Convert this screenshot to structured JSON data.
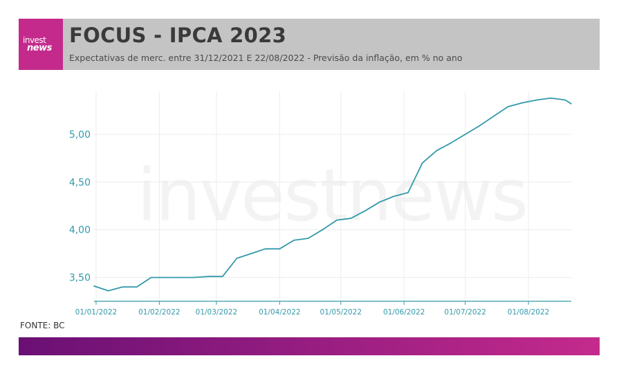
{
  "header": {
    "logo_top": "invest",
    "logo_bottom": "news",
    "title": "FOCUS - IPCA 2023",
    "subtitle": "Expectativas de merc. entre 31/12/2021 E 22/08/2022 - Previsão da inflação, em % no ano"
  },
  "watermark": "investnews",
  "source": "FONTE: BC",
  "colors": {
    "header_bg": "#c4c4c4",
    "brand_pink": "#c42a8c",
    "brand_purple": "#6a1075",
    "line": "#3399aa",
    "axis_text": "#3399aa"
  },
  "chart_data": {
    "type": "line",
    "title": "FOCUS - IPCA 2023",
    "xlabel": "",
    "ylabel": "",
    "x_range": [
      "2021-12-31",
      "2022-08-22"
    ],
    "ylim": [
      3.25,
      5.45
    ],
    "y_ticks": [
      3.5,
      4.0,
      4.5,
      5.0
    ],
    "y_tick_labels": [
      "3,50",
      "4,00",
      "4,50",
      "5,00"
    ],
    "x_ticks": [
      "2022-01-01",
      "2022-02-01",
      "2022-03-01",
      "2022-04-01",
      "2022-05-01",
      "2022-06-01",
      "2022-07-01",
      "2022-08-01"
    ],
    "x_tick_labels": [
      "01/01/2022",
      "01/02/2022",
      "01/03/2022",
      "01/04/2022",
      "01/05/2022",
      "01/06/2022",
      "01/07/2022",
      "01/08/2022"
    ],
    "grid": true,
    "series": [
      {
        "x": [
          "2021-12-31",
          "2022-01-07",
          "2022-01-14",
          "2022-01-21",
          "2022-01-28",
          "2022-02-04",
          "2022-02-11",
          "2022-02-18",
          "2022-02-25",
          "2022-03-04",
          "2022-03-11",
          "2022-03-18",
          "2022-03-25",
          "2022-04-01",
          "2022-04-08",
          "2022-04-15",
          "2022-04-22",
          "2022-04-29",
          "2022-05-06",
          "2022-05-13",
          "2022-05-20",
          "2022-05-27",
          "2022-06-03",
          "2022-06-10",
          "2022-06-17",
          "2022-06-24",
          "2022-07-01",
          "2022-07-08",
          "2022-07-15",
          "2022-07-22",
          "2022-07-29",
          "2022-08-05",
          "2022-08-12",
          "2022-08-19",
          "2022-08-22"
        ],
        "values": [
          3.41,
          3.36,
          3.4,
          3.4,
          3.5,
          3.5,
          3.5,
          3.5,
          3.51,
          3.51,
          3.7,
          3.75,
          3.8,
          3.8,
          3.89,
          3.91,
          4.0,
          4.1,
          4.12,
          4.2,
          4.29,
          4.35,
          4.39,
          4.7,
          4.83,
          4.91,
          5.0,
          5.09,
          5.19,
          5.29,
          5.33,
          5.36,
          5.38,
          5.36,
          5.32
        ]
      }
    ]
  }
}
